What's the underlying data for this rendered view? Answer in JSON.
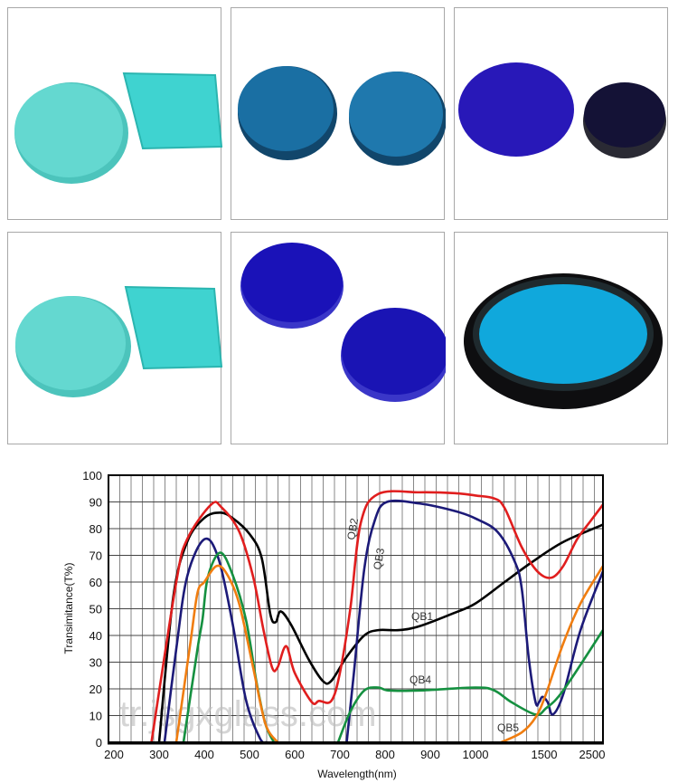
{
  "photos": [
    {
      "subject": "cyan glass disc and square",
      "colors": [
        "#5fd6cf",
        "#3fd3d0"
      ]
    },
    {
      "subject": "two blue glass discs",
      "colors": [
        "#1a6fa3",
        "#1f78ad"
      ]
    },
    {
      "subject": "violet-blue disc and dark disc",
      "colors": [
        "#2818b8",
        "#141236"
      ]
    },
    {
      "subject": "cyan glass disc and square",
      "colors": [
        "#5fd6cf",
        "#3fd3d0"
      ]
    },
    {
      "subject": "two deep blue discs",
      "colors": [
        "#1a12b8",
        "#1a14b4"
      ]
    },
    {
      "subject": "mounted cyan filter",
      "colors": [
        "#0e0e10",
        "#10a8dc"
      ]
    }
  ],
  "watermark": "tr.jsgxglass.com",
  "chart_data": {
    "type": "line",
    "title": "",
    "xlabel": "Wavelength(nm)",
    "ylabel": "Transimitance(T%)",
    "x_ticks": [
      "200",
      "300",
      "400",
      "500",
      "600",
      "700",
      "800",
      "900",
      "1000",
      "1500",
      "2500"
    ],
    "y_ticks": [
      "0",
      "10",
      "20",
      "30",
      "40",
      "50",
      "60",
      "70",
      "80",
      "90",
      "100"
    ],
    "xlim": [
      200,
      2500
    ],
    "ylim": [
      0,
      100
    ],
    "x_scale": "piecewise (200–1000 linear, then 1500, 2500 compressed)",
    "grid": true,
    "series": [
      {
        "name": "QB1",
        "color": "#000000",
        "segments": [
          [
            [
              300,
              0
            ],
            [
              331,
              54
            ],
            [
              362,
              75
            ],
            [
              400,
              84
            ],
            [
              435,
              86
            ],
            [
              462,
              84
            ],
            [
              500,
              78
            ],
            [
              527,
              69
            ],
            [
              546,
              48
            ],
            [
              558,
              45
            ],
            [
              569,
              49
            ],
            [
              592,
              44
            ],
            [
              631,
              31
            ],
            [
              662,
              23
            ],
            [
              681,
              23
            ],
            [
              715,
              32
            ],
            [
              754,
              40
            ],
            [
              785,
              42
            ],
            [
              831,
              42
            ],
            [
              877,
              43.5
            ],
            [
              954,
              48.5
            ],
            [
              1000,
              52
            ],
            [
              1212,
              60
            ],
            [
              1412,
              67.5
            ],
            [
              1824,
              75
            ],
            [
              2500,
              81.5
            ]
          ]
        ]
      },
      {
        "name": "QB2",
        "color": "#e01e1e",
        "segments": [
          [
            [
              283,
              0
            ],
            [
              338,
              60
            ],
            [
              362,
              76
            ],
            [
              415,
              89
            ],
            [
              438,
              88
            ],
            [
              477,
              79
            ],
            [
              508,
              62
            ],
            [
              531,
              42
            ],
            [
              550,
              28
            ],
            [
              562,
              28
            ],
            [
              581,
              36
            ],
            [
              600,
              26
            ],
            [
              638,
              15
            ],
            [
              654,
              15.5
            ],
            [
              681,
              15.5
            ],
            [
              700,
              26
            ],
            [
              723,
              50
            ],
            [
              746,
              82
            ],
            [
              785,
              93
            ],
            [
              877,
              93.6
            ],
            [
              954,
              93.3
            ],
            [
              1000,
              92.4
            ],
            [
              1137,
              91.3
            ],
            [
              1212,
              87.7
            ],
            [
              1337,
              73
            ],
            [
              1450,
              64
            ],
            [
              1618,
              61.6
            ],
            [
              1824,
              66
            ],
            [
              2059,
              76
            ],
            [
              2294,
              83
            ],
            [
              2500,
              89
            ]
          ]
        ]
      },
      {
        "name": "QB3",
        "color": "#1c1a78",
        "segments": [
          [
            [
              312,
              0
            ],
            [
              338,
              35
            ],
            [
              362,
              62
            ],
            [
              400,
              76
            ],
            [
              431,
              69
            ],
            [
              462,
              45
            ],
            [
              492,
              16
            ],
            [
              523,
              1.5
            ],
            [
              538,
              0
            ]
          ],
          [
            [
              715,
              0
            ],
            [
              731,
              26
            ],
            [
              754,
              65
            ],
            [
              777,
              83
            ],
            [
              804,
              90
            ],
            [
              877,
              89.4
            ],
            [
              954,
              86.6
            ],
            [
              1000,
              83.8
            ],
            [
              1162,
              78.7
            ],
            [
              1287,
              67.5
            ],
            [
              1337,
              57.4
            ],
            [
              1387,
              31.7
            ],
            [
              1437,
              15
            ],
            [
              1462,
              15
            ],
            [
              1487,
              17
            ],
            [
              1559,
              15
            ],
            [
              1647,
              10.4
            ],
            [
              1824,
              18
            ],
            [
              2118,
              42
            ],
            [
              2500,
              64
            ]
          ]
        ]
      },
      {
        "name": "QB4",
        "color": "#159040",
        "segments": [
          [
            [
              354,
              0
            ],
            [
              385,
              35
            ],
            [
              396,
              46
            ],
            [
              408,
              62
            ],
            [
              435,
              71
            ],
            [
              462,
              63
            ],
            [
              492,
              46
            ],
            [
              515,
              23
            ],
            [
              535,
              7
            ],
            [
              554,
              0
            ]
          ],
          [
            [
              696,
              0
            ],
            [
              723,
              11.5
            ],
            [
              754,
              19.4
            ],
            [
              785,
              20.5
            ],
            [
              808,
              19.4
            ],
            [
              877,
              19.4
            ],
            [
              1000,
              20.5
            ],
            [
              1137,
              19.4
            ],
            [
              1262,
              15
            ],
            [
              1437,
              10.4
            ],
            [
              1529,
              12.7
            ],
            [
              1824,
              19.4
            ],
            [
              2500,
              42
            ]
          ]
        ]
      },
      {
        "name": "QB5",
        "color": "#f07d10",
        "segments": [
          [
            [
              338,
              0
            ],
            [
              369,
              37
            ],
            [
              385,
              56
            ],
            [
              400,
              60
            ],
            [
              427,
              66
            ],
            [
              450,
              63
            ],
            [
              477,
              52
            ],
            [
              508,
              28
            ],
            [
              535,
              7
            ],
            [
              562,
              0
            ]
          ],
          [
            [
              1187,
              0
            ],
            [
              1337,
              3.7
            ],
            [
              1437,
              9.3
            ],
            [
              1529,
              18
            ],
            [
              1824,
              37
            ],
            [
              2118,
              52
            ],
            [
              2500,
              66
            ]
          ]
        ]
      }
    ]
  }
}
